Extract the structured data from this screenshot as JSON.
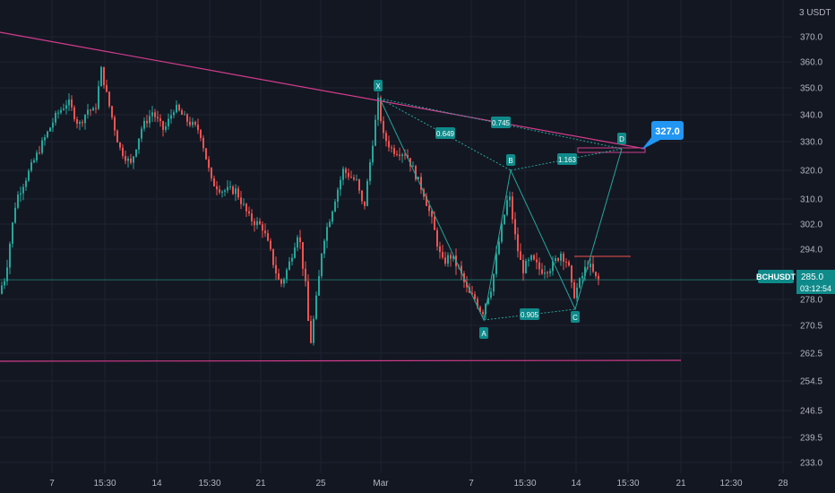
{
  "colors": {
    "background": "#131722",
    "grid": "#1f2331",
    "axis_text": "#b2b5be",
    "up": "#26a69a",
    "down": "#ef5350",
    "trendline": "#d23c8c",
    "harmonic": "#26a69a",
    "label_bg": "#0f8a8a",
    "target_bg": "#2196f3",
    "price_line": "#1e6b63"
  },
  "chart_data": {
    "type": "candlestick",
    "symbol": "BCHUSDT",
    "currency_label": "3 USDT",
    "y_ticks": [
      "370.0",
      "360.0",
      "350.0",
      "340.0",
      "330.0",
      "320.0",
      "310.0",
      "302.0",
      "294.0",
      "278.0",
      "270.5",
      "262.5",
      "254.5",
      "246.5",
      "239.5",
      "233.0"
    ],
    "x_ticks": [
      "7",
      "15:30",
      "14",
      "15:30",
      "21",
      "25",
      "Mar",
      "7",
      "15:30",
      "14",
      "15:30",
      "21",
      "12:30",
      "28"
    ],
    "last_price": "285.0",
    "countdown": "03:12:54",
    "pattern_points": [
      "X",
      "A",
      "B",
      "C",
      "D"
    ],
    "ratios": [
      "0.649",
      "0.745",
      "1.163",
      "0.905"
    ],
    "target_price": "327.0",
    "price_anchors": [
      [
        0,
        280
      ],
      [
        8,
        286
      ],
      [
        20,
        310
      ],
      [
        35,
        320
      ],
      [
        50,
        330
      ],
      [
        65,
        340
      ],
      [
        78,
        345
      ],
      [
        90,
        336
      ],
      [
        100,
        342
      ],
      [
        108,
        341
      ],
      [
        115,
        357
      ],
      [
        122,
        346
      ],
      [
        135,
        328
      ],
      [
        148,
        322
      ],
      [
        160,
        335
      ],
      [
        172,
        341
      ],
      [
        185,
        334
      ],
      [
        197,
        343
      ],
      [
        210,
        338
      ],
      [
        225,
        334
      ],
      [
        238,
        316
      ],
      [
        250,
        313
      ],
      [
        265,
        313
      ],
      [
        280,
        304
      ],
      [
        295,
        301
      ],
      [
        305,
        292
      ],
      [
        315,
        283
      ],
      [
        325,
        290
      ],
      [
        335,
        300
      ],
      [
        343,
        283
      ],
      [
        348,
        264
      ],
      [
        355,
        278
      ],
      [
        362,
        296
      ],
      [
        372,
        306
      ],
      [
        385,
        320
      ],
      [
        400,
        316
      ],
      [
        408,
        306
      ],
      [
        413,
        318
      ],
      [
        418,
        330
      ],
      [
        424,
        345
      ],
      [
        430,
        332
      ],
      [
        440,
        327
      ],
      [
        455,
        326
      ],
      [
        465,
        319
      ],
      [
        475,
        312
      ],
      [
        485,
        302
      ],
      [
        495,
        290
      ],
      [
        505,
        292
      ],
      [
        515,
        288
      ],
      [
        525,
        280
      ],
      [
        533,
        278
      ],
      [
        540,
        274
      ],
      [
        550,
        282
      ],
      [
        560,
        298
      ],
      [
        570,
        312
      ],
      [
        578,
        296
      ],
      [
        585,
        288
      ],
      [
        595,
        291
      ],
      [
        605,
        288
      ],
      [
        618,
        289
      ],
      [
        628,
        293
      ],
      [
        636,
        290
      ],
      [
        642,
        279
      ],
      [
        650,
        285
      ],
      [
        658,
        290
      ],
      [
        668,
        285
      ]
    ]
  }
}
